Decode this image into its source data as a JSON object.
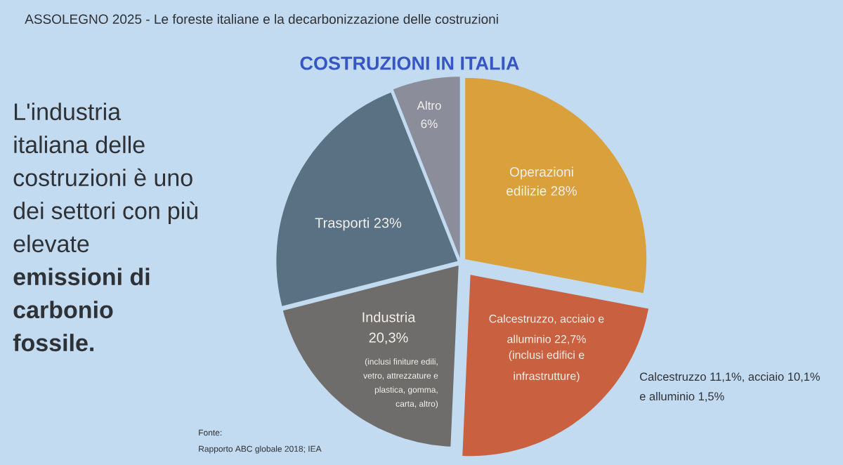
{
  "chart_data": {
    "type": "pie",
    "title": "COSTRUZIONI IN ITALIA",
    "categories": [
      "Operazioni edilizie",
      "Calcestruzzo, acciaio e alluminio",
      "Industria",
      "Trasporti",
      "Altro"
    ],
    "values": [
      28,
      22.7,
      20.3,
      23,
      6
    ],
    "value_labels": [
      "28%",
      "22,7%",
      "20,3%",
      "23%",
      "6%"
    ],
    "colors": [
      "#d9a03c",
      "#c9603f",
      "#6f6d6c",
      "#5a7183",
      "#8b8d9b"
    ],
    "annotations": [
      "ASSOLEGNO 2025 - Le foreste italiane e la decarbonizzazione delle costruzioni",
      "L'industria italiana delle costruzioni è uno dei settori con più elevate **emissioni di carbonio fossile.**",
      "(inclusi edifici e infrastrutture)",
      "(inclusi finiture edili, vetro, attrezzature e plastica, gomma, carta, altro)",
      "Calcestruzzo 11,1%, acciaio 10,1% e alluminio 1,5%",
      "Fonte:",
      "Rapporto ABC globale 2018; IEA"
    ]
  }
}
